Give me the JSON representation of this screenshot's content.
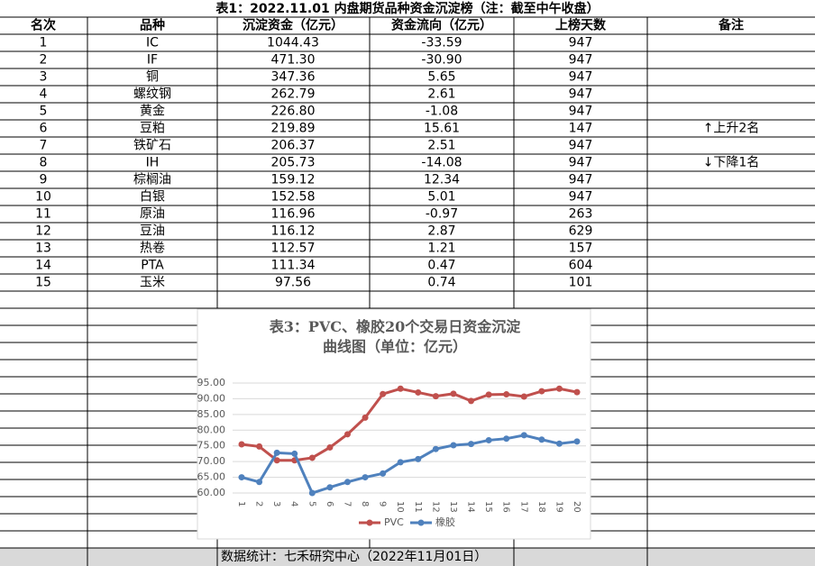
{
  "table": {
    "title": "表1：2022.11.01 内盘期货品种资金沉淀榜（注：截至中午收盘）",
    "headers": [
      "名次",
      "品种",
      "沉淀资金（亿元）",
      "资金流向（亿元）",
      "上榜天数",
      "备注"
    ],
    "rows": [
      {
        "rank": "1",
        "variety": "IC",
        "capital": "1044.43",
        "flow": "-33.59",
        "days": "947"
      },
      {
        "rank": "2",
        "variety": "IF",
        "capital": "471.30",
        "flow": "-30.90",
        "days": "947"
      },
      {
        "rank": "3",
        "variety": "铜",
        "capital": "347.36",
        "flow": "5.65",
        "days": "947"
      },
      {
        "rank": "4",
        "variety": "螺纹钢",
        "capital": "262.79",
        "flow": "2.61",
        "days": "947"
      },
      {
        "rank": "5",
        "variety": "黄金",
        "capital": "226.80",
        "flow": "-1.08",
        "days": "947"
      },
      {
        "rank": "6",
        "variety": "豆粕",
        "capital": "219.89",
        "flow": "15.61",
        "days": "147",
        "note": "↑上升2名"
      },
      {
        "rank": "7",
        "variety": "铁矿石",
        "capital": "206.37",
        "flow": "2.51",
        "days": "947"
      },
      {
        "rank": "8",
        "variety": "IH",
        "capital": "205.73",
        "flow": "-14.08",
        "days": "947",
        "note": "↓下降1名"
      },
      {
        "rank": "9",
        "variety": "棕榈油",
        "capital": "159.12",
        "flow": "12.34",
        "days": "947"
      },
      {
        "rank": "10",
        "variety": "白银",
        "capital": "152.58",
        "flow": "5.01",
        "days": "947"
      },
      {
        "rank": "11",
        "variety": "原油",
        "capital": "116.96",
        "flow": "-0.97",
        "days": "263"
      },
      {
        "rank": "12",
        "variety": "豆油",
        "capital": "116.12",
        "flow": "2.87",
        "days": "629"
      },
      {
        "rank": "13",
        "variety": "热卷",
        "capital": "112.57",
        "flow": "1.21",
        "days": "157"
      },
      {
        "rank": "14",
        "variety": "PTA",
        "capital": "111.34",
        "flow": "0.47",
        "days": "604"
      },
      {
        "rank": "15",
        "variety": "玉米",
        "capital": "97.56",
        "flow": "0.74",
        "days": "101"
      }
    ],
    "footer": "数据统计：七禾研究中心（2022年11月01日）"
  },
  "chart_data": {
    "type": "line",
    "title": "表3：PVC、橡胶20个交易日资金沉淀曲线图（单位：亿元）",
    "categories": [
      "1",
      "2",
      "3",
      "4",
      "5",
      "6",
      "7",
      "8",
      "9",
      "10",
      "11",
      "12",
      "13",
      "14",
      "15",
      "16",
      "17",
      "18",
      "19",
      "20"
    ],
    "series": [
      {
        "name": "PVC",
        "color": "#c0504d",
        "values": [
          75.5,
          74.8,
          70.4,
          70.4,
          71.2,
          74.5,
          78.7,
          84.0,
          91.5,
          93.2,
          92.0,
          90.8,
          91.6,
          89.3,
          91.3,
          91.4,
          90.7,
          92.4,
          93.2,
          92.1
        ]
      },
      {
        "name": "橡胶",
        "color": "#4f81bd",
        "values": [
          65.0,
          63.5,
          72.8,
          72.5,
          60.0,
          61.8,
          63.5,
          65.0,
          66.2,
          69.8,
          70.8,
          74.0,
          75.2,
          75.6,
          76.8,
          77.3,
          78.4,
          77.0,
          75.7,
          76.4
        ]
      }
    ],
    "ylim": [
      60,
      95
    ],
    "yticks": [
      {
        "value": 60,
        "label": "60.00"
      },
      {
        "value": 65,
        "label": "65.00"
      },
      {
        "value": 70,
        "label": "70.00"
      },
      {
        "value": 75,
        "label": "75.00"
      },
      {
        "value": 80,
        "label": "80.00"
      },
      {
        "value": 85,
        "label": "85.00"
      },
      {
        "value": 90,
        "label": "90.00"
      },
      {
        "value": 95,
        "label": "95.00"
      }
    ],
    "grid": true,
    "legend": "bottom"
  }
}
